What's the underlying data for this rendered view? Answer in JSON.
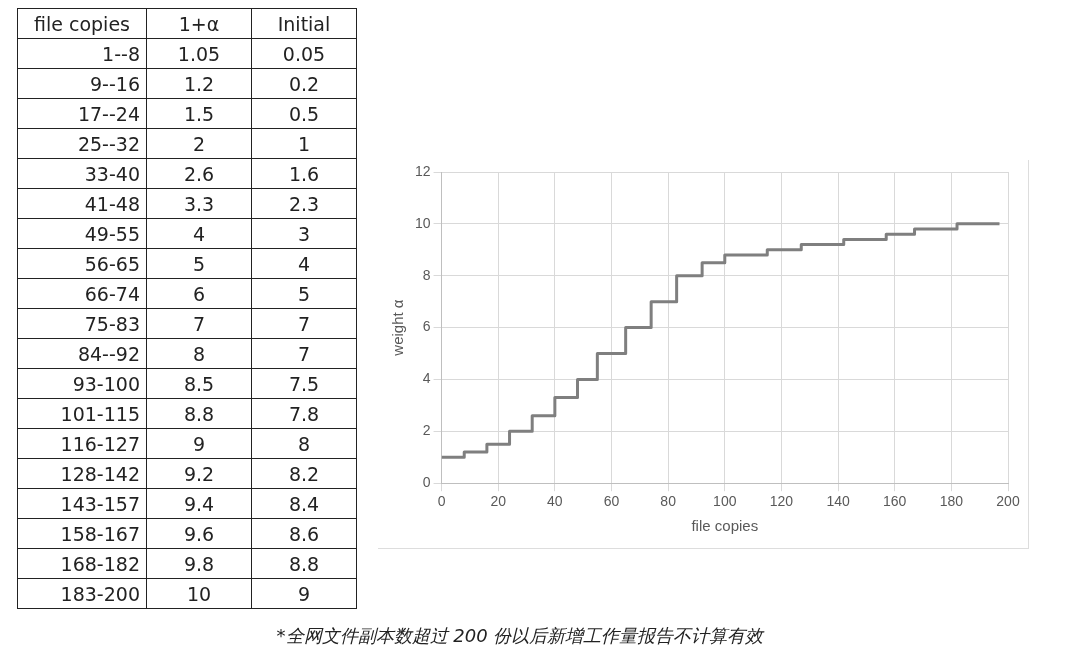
{
  "chart_data": [
    {
      "type": "other",
      "xlabel": "file copies",
      "data_labels": true,
      "categories": [
        "1--8",
        "9--16",
        "17--24",
        "25--32",
        "33-40",
        "41-48",
        "49-55",
        "56-65",
        "66-74",
        "75-83",
        "84--92",
        "93-100",
        "101-115",
        "116-127",
        "128-142",
        "143-157",
        "158-167",
        "168-182",
        "183-200"
      ],
      "series": [
        {
          "name": "1+α",
          "values": [
            1.05,
            1.2,
            1.5,
            2,
            2.6,
            3.3,
            4,
            5,
            6,
            7,
            8,
            8.5,
            8.8,
            9,
            9.2,
            9.4,
            9.6,
            9.8,
            10
          ]
        },
        {
          "name": "Initial",
          "values": [
            0.05,
            0.2,
            0.5,
            1,
            1.6,
            2.3,
            3,
            4,
            5,
            7,
            7,
            7.5,
            7.8,
            8,
            8.2,
            8.4,
            8.6,
            8.8,
            9
          ]
        }
      ]
    },
    {
      "type": "step",
      "xlabel": "file copies",
      "ylabel": "weight α",
      "xlim": [
        0,
        200
      ],
      "ylim": [
        0,
        12
      ],
      "xticks": [
        0,
        20,
        40,
        60,
        80,
        100,
        120,
        140,
        160,
        180,
        200
      ],
      "yticks": [
        0,
        2,
        4,
        6,
        8,
        10,
        12
      ],
      "grid": true,
      "legend": false,
      "marker": "none",
      "series": [
        {
          "color": "#7f7f7f",
          "x": [
            0,
            8,
            16,
            24,
            32,
            40,
            48,
            55,
            65,
            74,
            83,
            92,
            100,
            115,
            127,
            142,
            157,
            167,
            182,
            197
          ],
          "values": [
            1,
            1.2,
            1.5,
            2,
            2.6,
            3.3,
            4,
            5,
            6,
            7,
            8,
            8.5,
            8.8,
            9,
            9.2,
            9.4,
            9.6,
            9.8,
            10,
            10
          ]
        }
      ],
      "annotations": [
        "*全网文件副本数超过 200 份以后新增工作量报告不计算有效"
      ]
    }
  ]
}
